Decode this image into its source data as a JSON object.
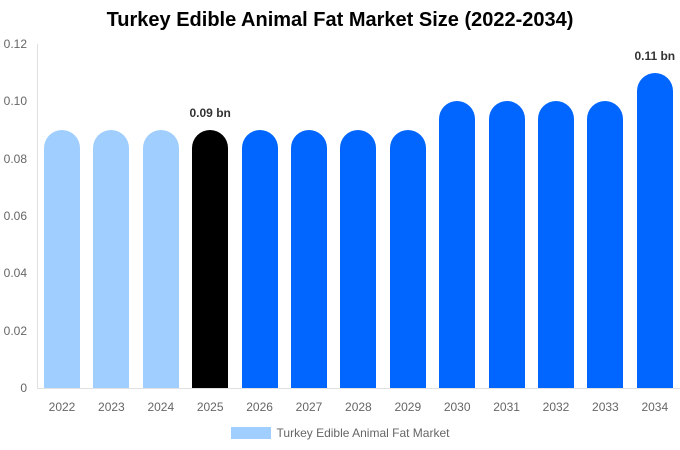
{
  "chart_data": {
    "type": "bar",
    "title": "Turkey Edible Animal Fat Market Size (2022-2034)",
    "xlabel": "",
    "ylabel": "",
    "ylim": [
      0,
      0.12
    ],
    "yticks": [
      "0",
      "0.02",
      "0.04",
      "0.06",
      "0.08",
      "0.10",
      "0.12"
    ],
    "categories": [
      "2022",
      "2023",
      "2024",
      "2025",
      "2026",
      "2027",
      "2028",
      "2029",
      "2030",
      "2031",
      "2032",
      "2033",
      "2034"
    ],
    "series": [
      {
        "name": "Turkey Edible Animal Fat Market",
        "values": [
          0.09,
          0.09,
          0.09,
          0.09,
          0.09,
          0.09,
          0.09,
          0.09,
          0.1,
          0.1,
          0.1,
          0.1,
          0.11
        ]
      }
    ],
    "bar_colors": [
      "#a0cfff",
      "#a0cfff",
      "#a0cfff",
      "#000000",
      "#0066ff",
      "#0066ff",
      "#0066ff",
      "#0066ff",
      "#0066ff",
      "#0066ff",
      "#0066ff",
      "#0066ff",
      "#0066ff"
    ],
    "annotations": [
      {
        "category": "2025",
        "text": "0.09 bn"
      },
      {
        "category": "2034",
        "text": "0.11 bn"
      }
    ],
    "grid": false,
    "legend_position": "bottom"
  },
  "legend": {
    "label": "Turkey Edible Animal Fat Market",
    "color": "#a0cfff"
  }
}
